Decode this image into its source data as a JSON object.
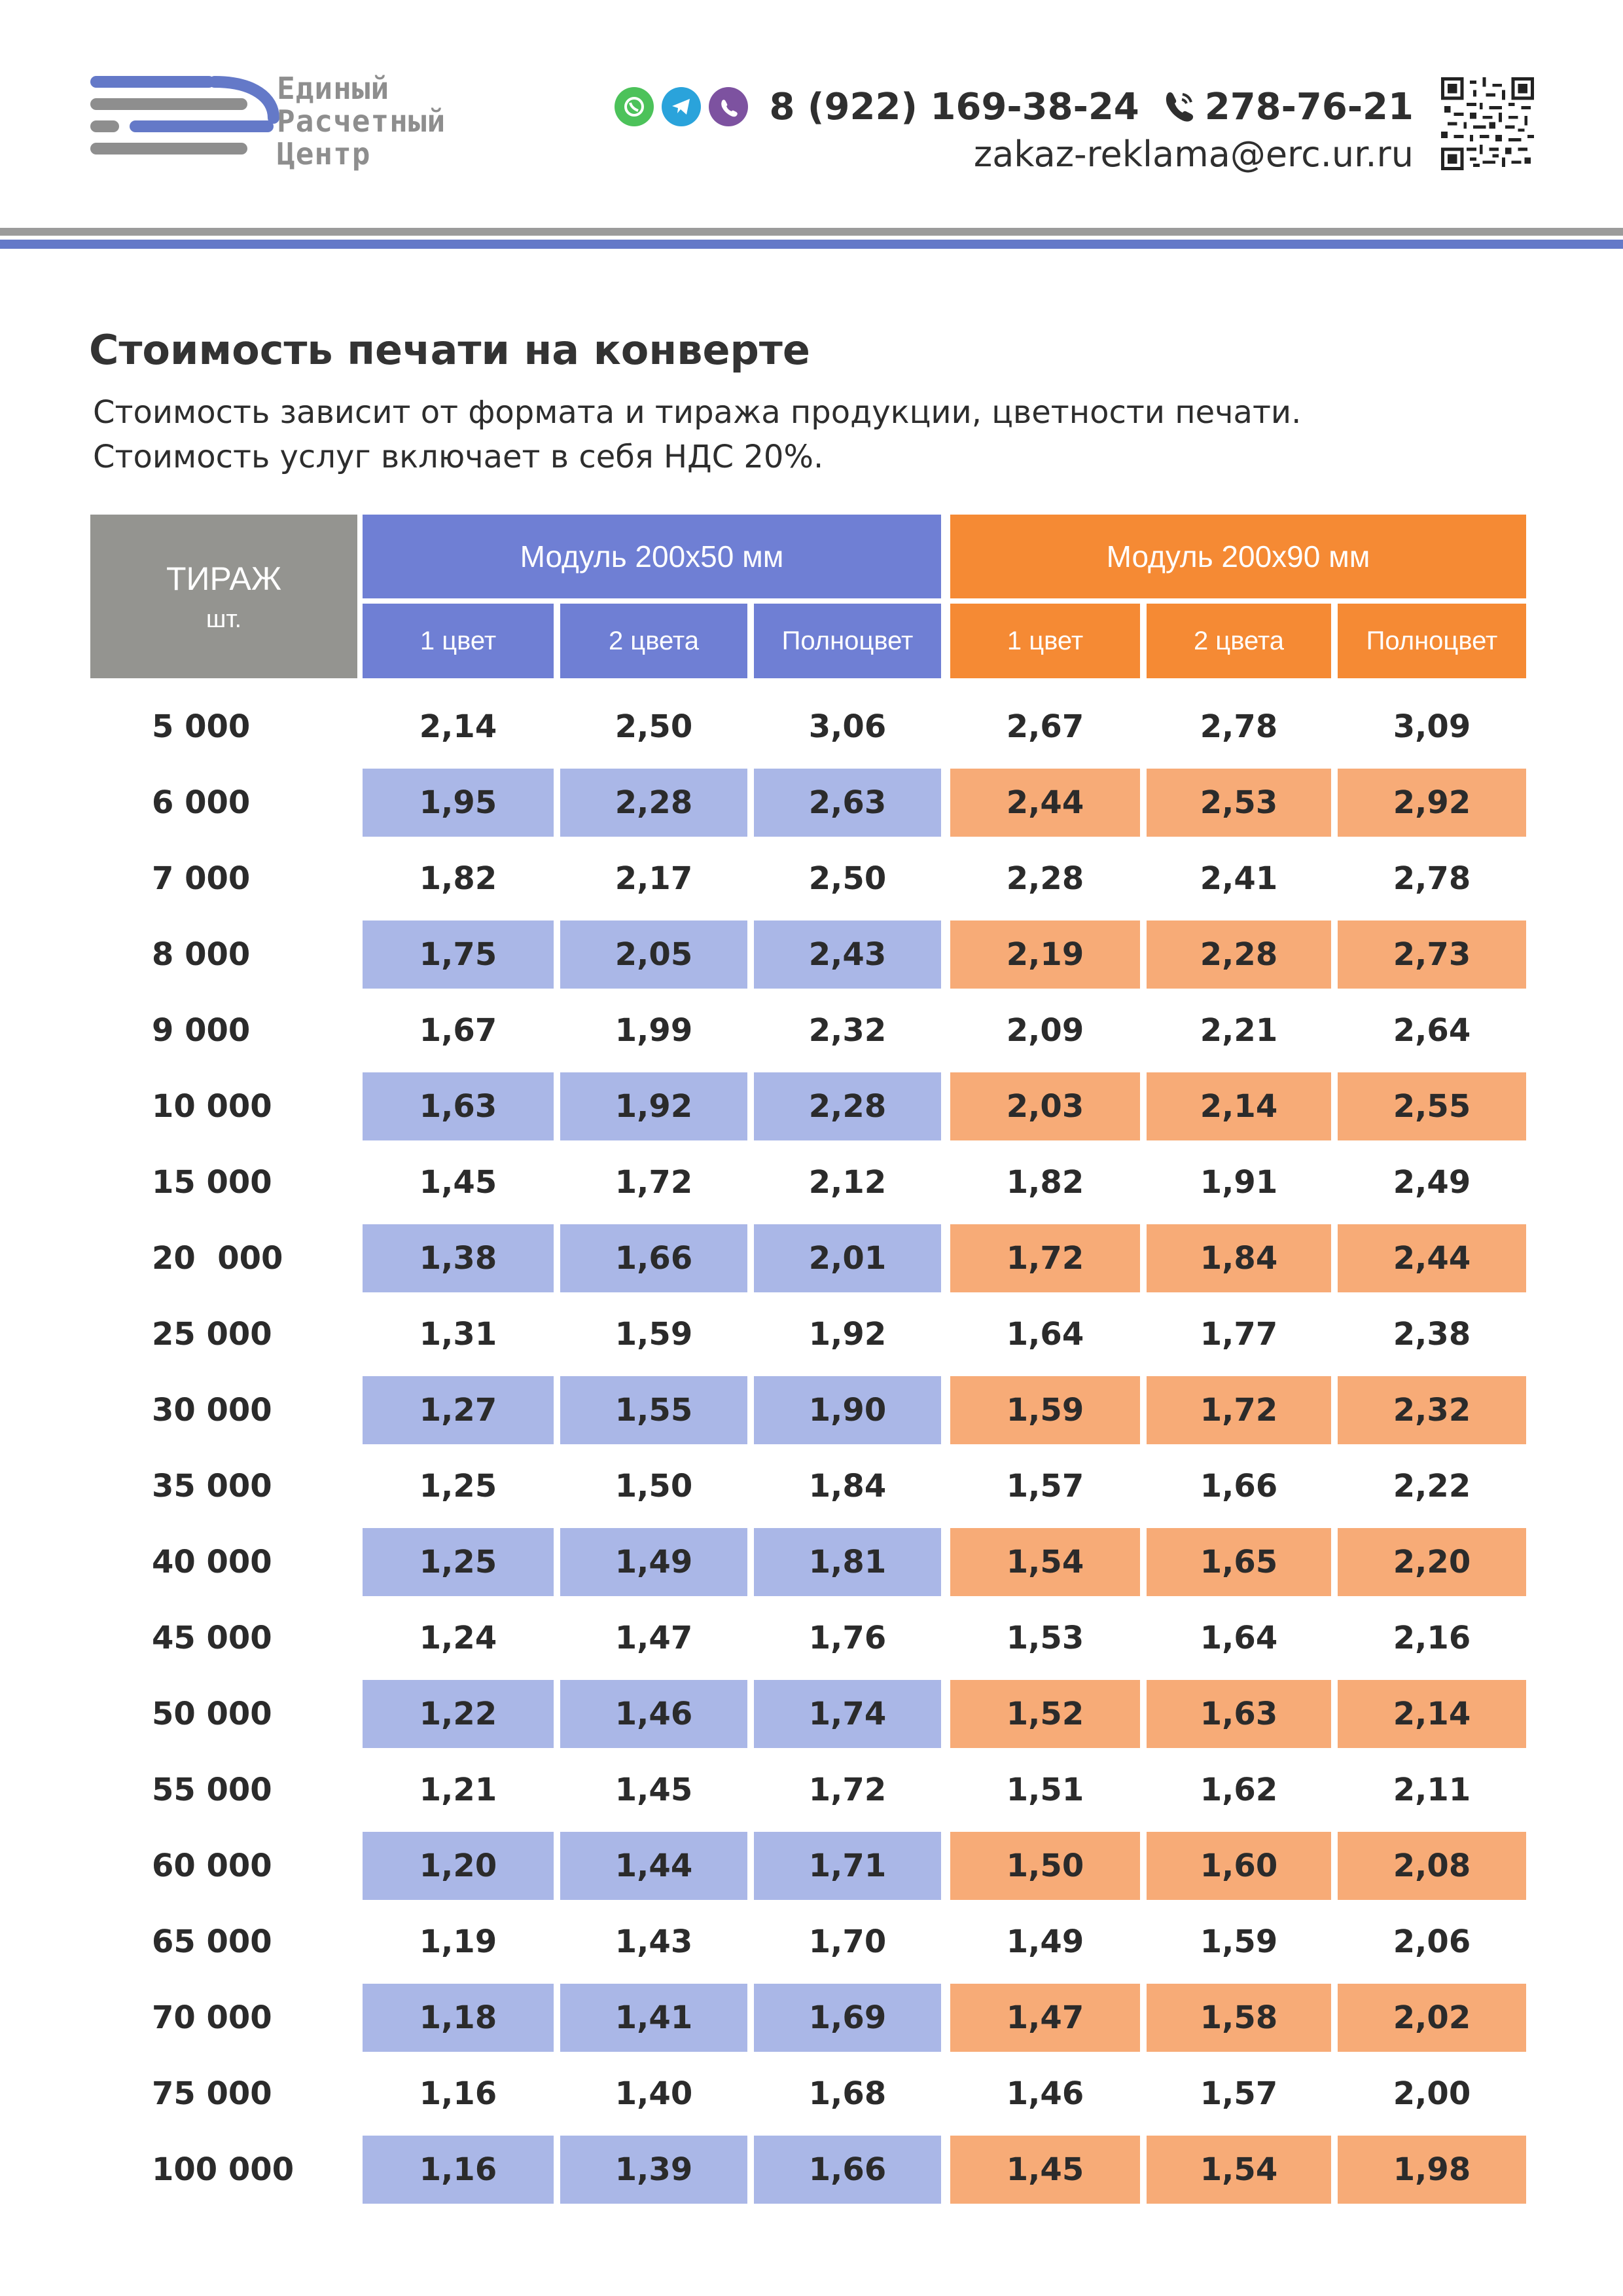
{
  "header": {
    "logo_lines": [
      "Единый",
      "Расчетный",
      "Центр"
    ],
    "messengers": [
      "whatsapp-icon",
      "telegram-icon",
      "viber-icon"
    ],
    "phone_main": "8 (922) 169-38-24",
    "phone_short": "278-76-21",
    "email": "zakaz-reklama@erc.ur.ru",
    "colors": {
      "gray": "#9b9b9b",
      "blue": "#6479c8"
    }
  },
  "title": "Стоимость печати на конверте",
  "subtitle_lines": [
    "Стоимость зависит от формата и тиража продукции, цветности печати.",
    "Стоимость услуг включает в себя НДС 20%."
  ],
  "table": {
    "tirazh_label": "ТИРАЖ",
    "tirazh_unit": "шт.",
    "groups": [
      {
        "label": "Модуль 200х50 мм",
        "color": "#6f7fd4",
        "band": "#aab7e7"
      },
      {
        "label": "Модуль 200х90 мм",
        "color": "#f58a34",
        "band": "#f7ab77"
      }
    ],
    "subheaders": [
      "1 цвет",
      "2 цвета",
      "Полноцвет",
      "1 цвет",
      "2 цвета",
      "Полноцвет"
    ],
    "rows": [
      {
        "qty": "5 000",
        "v": [
          "2,14",
          "2,50",
          "3,06",
          "2,67",
          "2,78",
          "3,09"
        ]
      },
      {
        "qty": "6 000",
        "v": [
          "1,95",
          "2,28",
          "2,63",
          "2,44",
          "2,53",
          "2,92"
        ]
      },
      {
        "qty": "7 000",
        "v": [
          "1,82",
          "2,17",
          "2,50",
          "2,28",
          "2,41",
          "2,78"
        ]
      },
      {
        "qty": "8 000",
        "v": [
          "1,75",
          "2,05",
          "2,43",
          "2,19",
          "2,28",
          "2,73"
        ]
      },
      {
        "qty": "9 000",
        "v": [
          "1,67",
          "1,99",
          "2,32",
          "2,09",
          "2,21",
          "2,64"
        ]
      },
      {
        "qty": "10 000",
        "v": [
          "1,63",
          "1,92",
          "2,28",
          "2,03",
          "2,14",
          "2,55"
        ]
      },
      {
        "qty": "15 000",
        "v": [
          "1,45",
          "1,72",
          "2,12",
          "1,82",
          "1,91",
          "2,49"
        ]
      },
      {
        "qty": "20  000",
        "v": [
          "1,38",
          "1,66",
          "2,01",
          "1,72",
          "1,84",
          "2,44"
        ]
      },
      {
        "qty": "25 000",
        "v": [
          "1,31",
          "1,59",
          "1,92",
          "1,64",
          "1,77",
          "2,38"
        ]
      },
      {
        "qty": "30 000",
        "v": [
          "1,27",
          "1,55",
          "1,90",
          "1,59",
          "1,72",
          "2,32"
        ]
      },
      {
        "qty": "35 000",
        "v": [
          "1,25",
          "1,50",
          "1,84",
          "1,57",
          "1,66",
          "2,22"
        ]
      },
      {
        "qty": "40 000",
        "v": [
          "1,25",
          "1,49",
          "1,81",
          "1,54",
          "1,65",
          "2,20"
        ]
      },
      {
        "qty": "45 000",
        "v": [
          "1,24",
          "1,47",
          "1,76",
          "1,53",
          "1,64",
          "2,16"
        ]
      },
      {
        "qty": "50 000",
        "v": [
          "1,22",
          "1,46",
          "1,74",
          "1,52",
          "1,63",
          "2,14"
        ]
      },
      {
        "qty": "55 000",
        "v": [
          "1,21",
          "1,45",
          "1,72",
          "1,51",
          "1,62",
          "2,11"
        ]
      },
      {
        "qty": "60 000",
        "v": [
          "1,20",
          "1,44",
          "1,71",
          "1,50",
          "1,60",
          "2,08"
        ]
      },
      {
        "qty": "65 000",
        "v": [
          "1,19",
          "1,43",
          "1,70",
          "1,49",
          "1,59",
          "2,06"
        ]
      },
      {
        "qty": "70 000",
        "v": [
          "1,18",
          "1,41",
          "1,69",
          "1,47",
          "1,58",
          "2,02"
        ]
      },
      {
        "qty": "75 000",
        "v": [
          "1,16",
          "1,40",
          "1,68",
          "1,46",
          "1,57",
          "2,00"
        ]
      },
      {
        "qty": "100 000",
        "v": [
          "1,16",
          "1,39",
          "1,66",
          "1,45",
          "1,54",
          "1,98"
        ]
      }
    ]
  }
}
